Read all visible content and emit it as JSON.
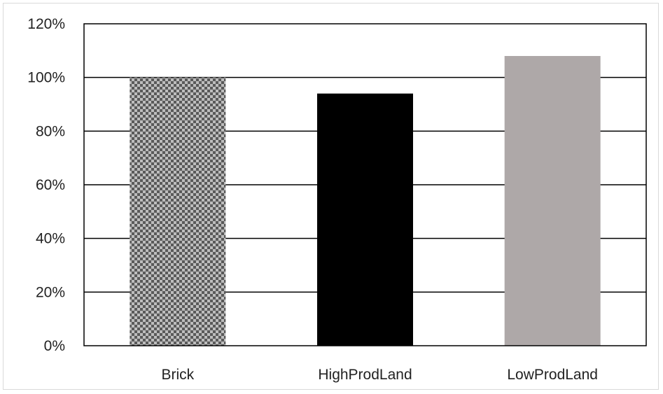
{
  "chart_data": {
    "type": "bar",
    "categories": [
      "Brick",
      "HighProdLand",
      "LowProdLand"
    ],
    "values": [
      100,
      94,
      108
    ],
    "ylim": [
      0,
      120
    ],
    "y_ticks": [
      0,
      20,
      40,
      60,
      80,
      100,
      120
    ],
    "y_tick_labels": [
      "0%",
      "20%",
      "40%",
      "60%",
      "80%",
      "100%",
      "120%"
    ],
    "grid": true,
    "bar_styles": [
      {
        "fill": "checkered",
        "colors": [
          "#5a5a5a",
          "#bdbdbd"
        ]
      },
      {
        "fill": "solid",
        "color": "#000000"
      },
      {
        "fill": "solid",
        "color": "#aea8a8"
      }
    ],
    "title": "",
    "xlabel": "",
    "ylabel": ""
  }
}
